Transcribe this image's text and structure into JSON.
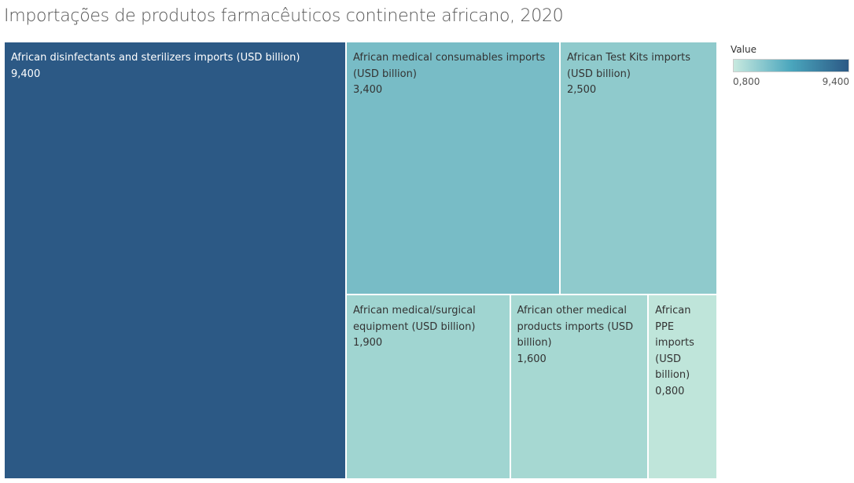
{
  "chart_data": {
    "type": "treemap",
    "title": "Importações de produtos farmacêuticos continente africano, 2020",
    "categories": [
      "African disinfectants and sterilizers imports (USD billion)",
      "African medical consumables imports (USD billion)",
      "African Test Kits imports (USD billion)",
      "African medical/surgical equipment (USD billion)",
      "African other medical products imports (USD billion)",
      "African PPE imports (USD billion)"
    ],
    "values": [
      9.4,
      3.4,
      2.5,
      1.9,
      1.6,
      0.8
    ],
    "value_labels": [
      "9,400",
      "3,400",
      "2,500",
      "1,900",
      "1,600",
      "0,800"
    ],
    "colors": [
      "#2c5985",
      "#78bcc6",
      "#8fcacc",
      "#a0d5d1",
      "#a6d8d2",
      "#bfe5da"
    ],
    "legend": {
      "title": "Value",
      "range": [
        {
          "value": 0.8,
          "label": "0,800"
        },
        {
          "value": 9.4,
          "label": "9,400"
        }
      ],
      "colors": [
        "#c8e9df",
        "#4aa6bd",
        "#2c5985"
      ]
    }
  }
}
